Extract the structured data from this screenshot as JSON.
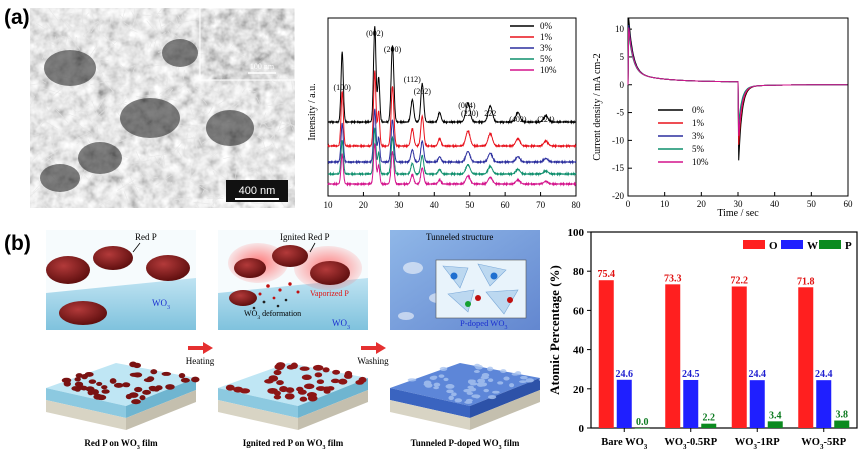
{
  "panel_a_label": "(a)",
  "panel_b_label": "(b)",
  "sem": {
    "scale_main": "400 nm",
    "scale_inset": "100 nm"
  },
  "colors": {
    "black": "#000000",
    "red": "#e8121c",
    "blue": "#2b2e9e",
    "green": "#0f8f6d",
    "magenta": "#d4148c",
    "bar_O": "#ff1f1f",
    "bar_W": "#1f1fff",
    "bar_P": "#0b8a1f"
  },
  "chart_data": [
    {
      "type": "line",
      "xlabel": "",
      "ylabel": "Intensity / a.u.",
      "xlim": [
        10,
        80
      ],
      "xticks": [
        "10",
        "20",
        "30",
        "40",
        "50",
        "60",
        "70",
        "80"
      ],
      "legend_position": "top-right",
      "peak_labels": [
        {
          "label": "(100)",
          "x": 14
        },
        {
          "label": "(002)",
          "x": 23.2
        },
        {
          "label": "(200)",
          "x": 28.2
        },
        {
          "label": "(112)",
          "x": 33.8
        },
        {
          "label": "(202)",
          "x": 36.6
        },
        {
          "label": "(004)",
          "x": 49.2
        },
        {
          "label": "(220)",
          "x": 50.0
        },
        {
          "label": "222",
          "x": 55.8
        },
        {
          "label": "(402)",
          "x": 63.6
        },
        {
          "label": "(224)",
          "x": 71.5
        }
      ],
      "series": [
        {
          "name": "0%",
          "color": "#000000"
        },
        {
          "name": "1%",
          "color": "#e8121c"
        },
        {
          "name": "3%",
          "color": "#2b2e9e"
        },
        {
          "name": "5%",
          "color": "#0f8f6d"
        },
        {
          "name": "10%",
          "color": "#d4148c"
        }
      ]
    },
    {
      "type": "line",
      "xlabel": "Time / sec",
      "ylabel": "Current density / mA cm-2",
      "xlim": [
        0,
        60
      ],
      "ylim": [
        -20,
        12
      ],
      "xticks": [
        "0",
        "10",
        "20",
        "30",
        "40",
        "50",
        "60"
      ],
      "yticks": [
        "10",
        "5",
        "0",
        "-5",
        "-10",
        "-15",
        "-20"
      ],
      "legend_position": "bottom-left",
      "series": [
        {
          "name": "0%",
          "color": "#000000"
        },
        {
          "name": "1%",
          "color": "#e8121c"
        },
        {
          "name": "3%",
          "color": "#2b2e9e"
        },
        {
          "name": "5%",
          "color": "#0f8f6d"
        },
        {
          "name": "10%",
          "color": "#d4148c"
        }
      ]
    },
    {
      "type": "bar",
      "ylabel": "Atomic Percentage (%)",
      "ylim": [
        0,
        100
      ],
      "yticks": [
        "0",
        "20",
        "40",
        "60",
        "80",
        "100"
      ],
      "categories": [
        {
          "main": "Bare WO",
          "sub": "3",
          "tail": ""
        },
        {
          "main": "WO",
          "sub": "3",
          "tail": "-0.5RP"
        },
        {
          "main": "WO",
          "sub": "3",
          "tail": "-1RP"
        },
        {
          "main": "WO",
          "sub": "3",
          "tail": "-5RP"
        }
      ],
      "legend_position": "top-right",
      "series": [
        {
          "name": "O",
          "values": [
            75.4,
            73.3,
            72.2,
            71.8
          ],
          "labels": [
            "75.4",
            "73.3",
            "72.2",
            "71.8"
          ]
        },
        {
          "name": "W",
          "values": [
            24.6,
            24.5,
            24.4,
            24.4
          ],
          "labels": [
            "24.6",
            "24.5",
            "24.4",
            "24.4"
          ]
        },
        {
          "name": "P",
          "values": [
            0.0,
            2.2,
            3.4,
            3.8
          ],
          "labels": [
            "0.0",
            "2.2",
            "3.4",
            "3.8"
          ]
        }
      ]
    }
  ],
  "schematic": {
    "red_p": "Red P",
    "wo3_1": "WO",
    "ignited_red_p": "Ignited Red P",
    "vaporized_p": "Vaporized P",
    "wo3_deformation": "WO",
    "deformation_text": " deformation",
    "wo3_2": "WO",
    "tunneled_structure": "Tunneled structure",
    "p_doped": "P-doped WO",
    "heating": "Heating",
    "washing": "Washing",
    "caption1_main": "Red P on WO",
    "caption1_tail": " film",
    "caption2_main": "Ignited red P on WO",
    "caption2_tail": " film",
    "caption3_main": "Tunneled P-doped WO",
    "caption3_tail": " film",
    "sub3": "3"
  }
}
